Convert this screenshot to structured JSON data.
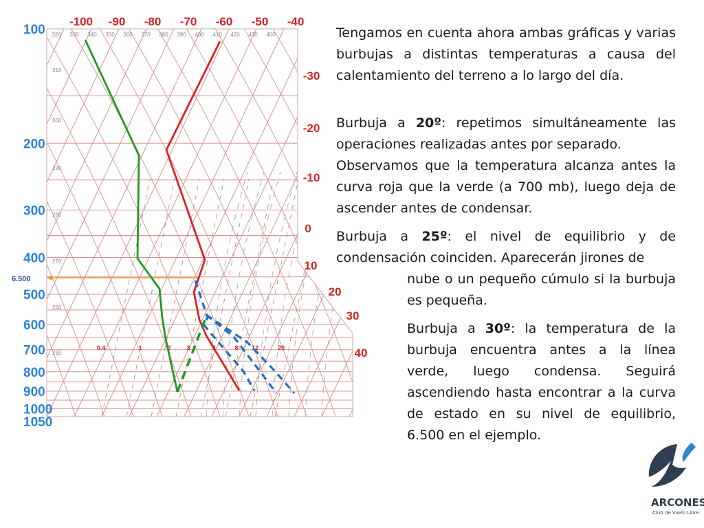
{
  "pressure_labels": [
    {
      "text": "100",
      "p": 100
    },
    {
      "text": "200",
      "p": 200
    },
    {
      "text": "300",
      "p": 300
    },
    {
      "text": "400",
      "p": 400
    },
    {
      "text": "500",
      "p": 500
    },
    {
      "text": "600",
      "p": 600
    },
    {
      "text": "700",
      "p": 700
    },
    {
      "text": "800",
      "p": 800
    },
    {
      "text": "900",
      "p": 900
    },
    {
      "text": "1000",
      "p": 1000
    },
    {
      "text": "1050",
      "p": 1050
    }
  ],
  "top_temp_labels": [
    "-100",
    "-90",
    "-80",
    "-70",
    "-60",
    "-50",
    "-40"
  ],
  "right_temp_labels": [
    "-30",
    "-20",
    "-10",
    "0",
    "10",
    "20",
    "30",
    "40"
  ],
  "theta_labels": [
    "320",
    "330",
    "340",
    "350",
    "360",
    "370",
    "380",
    "390",
    "400",
    "410",
    "420",
    "430",
    "450"
  ],
  "left_theta_labels": [
    "310",
    "300",
    "290",
    "280",
    "270",
    "260",
    "250"
  ],
  "mixing_ratio_labels": [
    "0.4",
    "1",
    "2",
    "3",
    "5",
    "8",
    "12",
    "20"
  ],
  "altitude_marker": {
    "label": "6.500",
    "color": "#e0a020"
  },
  "colors": {
    "state_curve": "#e02020",
    "dew_curve": "#1f9a1f",
    "dashed_parcels": "#1f6fc0",
    "grid": "#d99090",
    "pressure_labels": "#2e80d8",
    "temp_labels": "#d42222"
  },
  "text": {
    "p1": "Tengamos en cuenta ahora ambas gráficas y varias burbujas a distintas temperaturas a causa del calentamiento del terreno a lo largo del día.",
    "p2_intro": "Burbuja a ",
    "p2_bold": "20º",
    "p2_rest": ":  repetimos simultáneamente las operaciones realizadas antes por separado.",
    "p3": "Observamos que la temperatura alcanza antes la curva roja que la verde (a 700 mb), luego deja de ascender antes de condensar.",
    "p4_intro": "Burbuja a ",
    "p4_bold": "25º",
    "p4_rest_line1": ":  el nivel de equilibrio y de condensación coinciden. Aparecerán jirones de",
    "p4_rest_line2": "nube o un pequeño cúmulo si la burbuja es  pequeña.",
    "p5_intro": "Burbuja a ",
    "p5_bold": "30º",
    "p5_rest": ":   la temperatura de la burbuja encuentra antes a la línea verde, luego condensa. Seguirá ascendiendo hasta encontrar a la curva de estado en su nivel de equilibrio, 6.500 en el ejemplo."
  },
  "logo": {
    "name": "ARCONES",
    "sub": "Club de Vuelo Libre",
    "color": "#2e3f52",
    "accent": "#2e80d8"
  }
}
